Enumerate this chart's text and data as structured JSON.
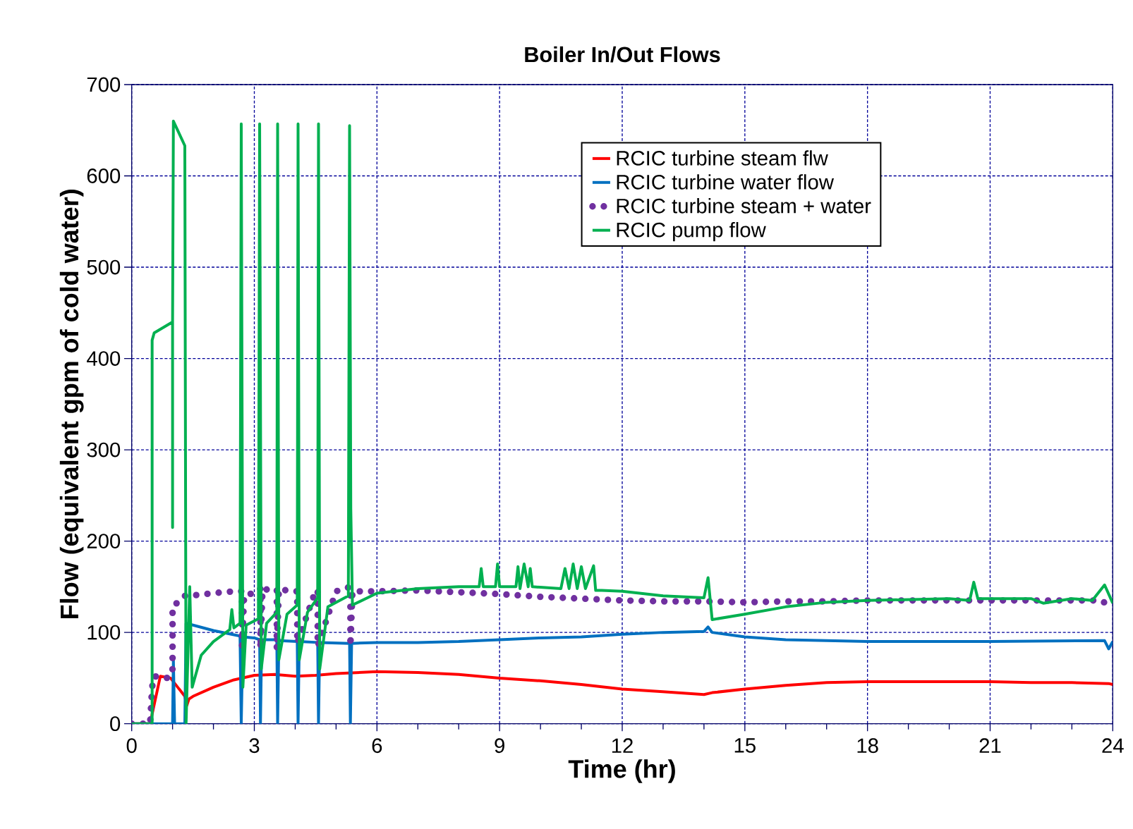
{
  "chart_data": {
    "type": "line",
    "title": "Boiler In/Out Flows",
    "xlabel": "Time (hr)",
    "ylabel": "Flow (equivalent gpm of cold water)",
    "xlim": [
      0,
      24
    ],
    "xticks": [
      0,
      3,
      6,
      9,
      12,
      15,
      18,
      21,
      24
    ],
    "ylim": [
      0,
      700
    ],
    "yticks": [
      0,
      100,
      200,
      300,
      400,
      500,
      600,
      700
    ],
    "grid": true,
    "legend": "top right",
    "line_style": "solid",
    "marker": "none",
    "series": [
      {
        "name": "RCIC turbine steam flw",
        "color": "#ff0000",
        "x": [
          0,
          0.45,
          0.5,
          0.7,
          0.95,
          1.3,
          1.35,
          1.4,
          1.5,
          2,
          2.5,
          3,
          3.5,
          4,
          4.5,
          5,
          5.5,
          6,
          7,
          8,
          9,
          10,
          11,
          12,
          13,
          14,
          14.2,
          15,
          16,
          17,
          18,
          19,
          20,
          21,
          22,
          23,
          23.9,
          24
        ],
        "values": [
          0,
          0,
          null,
          52,
          50,
          30,
          20,
          27,
          30,
          40,
          48,
          53,
          54,
          52,
          53,
          55,
          56,
          57,
          56,
          54,
          50,
          47,
          43,
          38,
          35,
          32,
          34,
          38,
          42,
          45,
          46,
          46,
          46,
          46,
          45,
          45,
          44,
          43
        ]
      },
      {
        "name": "RCIC turbine water flow",
        "color": "#0070c0",
        "x": [
          0,
          1.0,
          1.02,
          1.05,
          1.3,
          1.33,
          1.5,
          2,
          2.65,
          2.68,
          2.72,
          3,
          3.13,
          3.15,
          3.18,
          3.55,
          3.57,
          3.6,
          4.05,
          4.07,
          4.1,
          4.55,
          4.57,
          4.6,
          5.33,
          5.35,
          5.38,
          6,
          7,
          8,
          9,
          10,
          11,
          12,
          13,
          14,
          14.1,
          14.2,
          15,
          16,
          18,
          21,
          23.8,
          23.9,
          24
        ],
        "values": [
          0,
          0,
          70,
          0,
          0,
          110,
          108,
          102,
          96,
          0,
          95,
          94,
          92,
          0,
          92,
          92,
          0,
          91,
          90,
          0,
          90,
          89,
          0,
          89,
          88,
          0,
          88,
          89,
          89,
          90,
          92,
          94,
          95,
          98,
          100,
          101,
          106,
          100,
          95,
          92,
          90,
          90,
          91,
          82,
          90
        ]
      },
      {
        "name": "RCIC turbine steam + water",
        "color": "#7030a0",
        "line_style": "dotted",
        "x": [
          0,
          0.45,
          0.5,
          0.55,
          0.9,
          1.0,
          1.0,
          1.3,
          1.35,
          1.6,
          2.0,
          2.5,
          2.7,
          2.7,
          2.75,
          3.1,
          3.15,
          3.15,
          3.2,
          3.55,
          3.55,
          3.6,
          4.0,
          4.05,
          4.05,
          4.5,
          4.55,
          4.55,
          5.0,
          5.35,
          5.35,
          5.4,
          6,
          7,
          8,
          9,
          10,
          11,
          12,
          13,
          14,
          15,
          16,
          17,
          18,
          19,
          20,
          21,
          22,
          23,
          23.7,
          24
        ],
        "values": [
          0,
          0,
          40,
          52,
          50,
          60,
          128,
          140,
          140,
          141,
          143,
          145,
          145,
          85,
          140,
          145,
          148,
          82,
          147,
          147,
          82,
          147,
          145,
          145,
          88,
          146,
          146,
          85,
          145,
          150,
          85,
          145,
          145,
          146,
          144,
          142,
          139,
          137,
          135,
          134,
          134,
          133,
          134,
          134,
          135,
          135,
          135,
          135,
          135,
          135,
          135,
          128
        ]
      },
      {
        "name": "RCIC pump flow",
        "color": "#00b050",
        "x": [
          0,
          0.5,
          0.5,
          0.55,
          1.0,
          1.0,
          1.0,
          1.02,
          1.3,
          1.33,
          1.42,
          1.48,
          1.7,
          2.0,
          2.4,
          2.45,
          2.5,
          2.65,
          2.68,
          2.72,
          2.8,
          3.1,
          3.13,
          3.17,
          3.3,
          3.55,
          3.57,
          3.6,
          3.8,
          4.05,
          4.07,
          4.1,
          4.3,
          4.55,
          4.57,
          4.6,
          4.8,
          5.3,
          5.33,
          5.36,
          5.4,
          6,
          7,
          8,
          8.5,
          8.55,
          8.6,
          8.9,
          8.95,
          9.0,
          9.4,
          9.45,
          9.5,
          9.6,
          9.7,
          9.75,
          9.8,
          10.5,
          10.6,
          10.7,
          10.8,
          10.9,
          11.0,
          11.1,
          11.3,
          11.35,
          11.5,
          12,
          13,
          14,
          14.1,
          14.2,
          15,
          16,
          17,
          18,
          20,
          20.5,
          20.6,
          20.7,
          22,
          22.3,
          23,
          23.5,
          23.8,
          24
        ],
        "values": [
          0,
          0,
          420,
          428,
          440,
          215,
          440,
          660,
          633,
          0,
          150,
          40,
          75,
          90,
          103,
          125,
          105,
          110,
          657,
          40,
          108,
          115,
          657,
          60,
          110,
          122,
          657,
          70,
          120,
          130,
          657,
          70,
          122,
          138,
          657,
          60,
          128,
          140,
          655,
          235,
          130,
          143,
          148,
          150,
          150,
          170,
          150,
          150,
          175,
          150,
          150,
          172,
          148,
          175,
          150,
          170,
          150,
          148,
          170,
          148,
          175,
          148,
          172,
          148,
          173,
          146,
          146,
          145,
          140,
          138,
          160,
          114,
          120,
          128,
          133,
          135,
          137,
          135,
          155,
          137,
          137,
          132,
          137,
          135,
          152,
          132
        ]
      }
    ]
  }
}
